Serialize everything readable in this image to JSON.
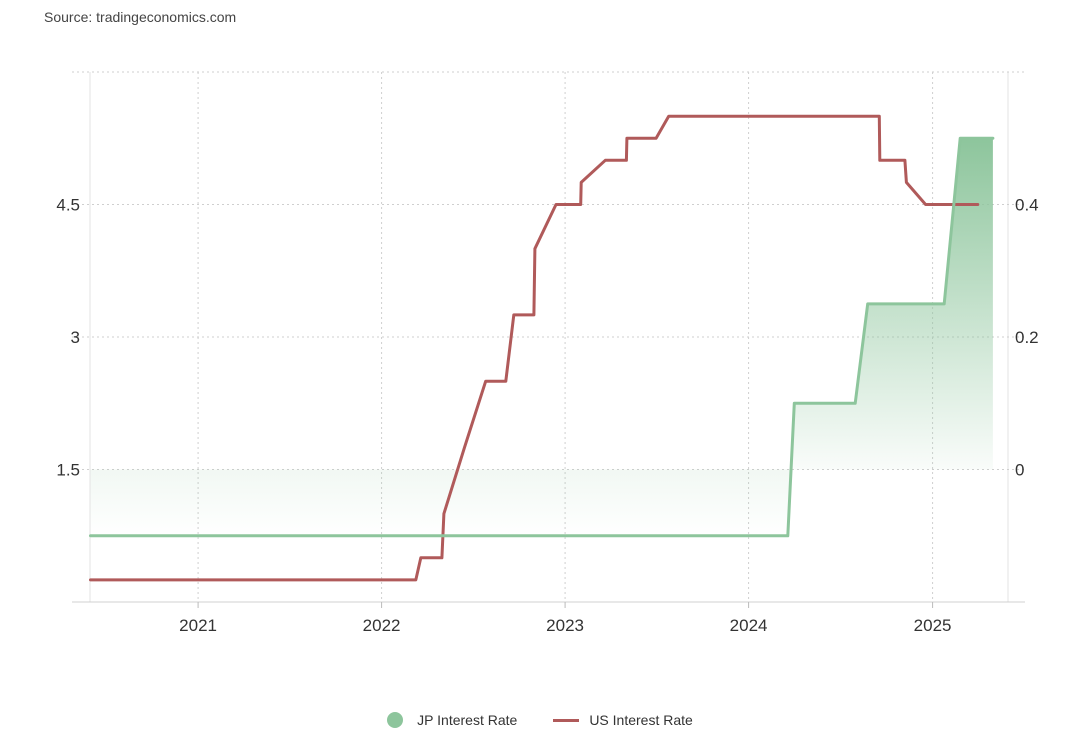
{
  "source": "Source: tradingeconomics.com",
  "legend": {
    "jp": "JP Interest Rate",
    "us": "US Interest Rate"
  },
  "colors": {
    "jp": "#8dc59c",
    "us": "#b05a5a",
    "grid": "#cfcfcf"
  },
  "chart_data": {
    "type": "line",
    "x_ticks": [
      "2021",
      "2022",
      "2023",
      "2024",
      "2025"
    ],
    "y_left": {
      "ticks": [
        1.5,
        3,
        4.5
      ],
      "labels": [
        "1.5",
        "3",
        "4.5"
      ],
      "range": [
        0,
        6
      ]
    },
    "y_right": {
      "ticks": [
        0,
        0.2,
        0.4
      ],
      "labels": [
        "0",
        "0.2",
        "0.4"
      ],
      "range": [
        -0.2,
        0.6
      ]
    },
    "x_range": [
      "2020-05-31",
      "2025-05-31"
    ],
    "series": [
      {
        "name": "US Interest Rate",
        "axis": "left",
        "points": [
          [
            "2020-06-01",
            0.25
          ],
          [
            "2022-03-10",
            0.25
          ],
          [
            "2022-03-20",
            0.5
          ],
          [
            "2022-05-01",
            0.5
          ],
          [
            "2022-05-05",
            1.0
          ],
          [
            "2022-06-15",
            1.75
          ],
          [
            "2022-07-27",
            2.5
          ],
          [
            "2022-09-05",
            2.5
          ],
          [
            "2022-09-21",
            3.25
          ],
          [
            "2022-10-31",
            3.25
          ],
          [
            "2022-11-02",
            4.0
          ],
          [
            "2022-12-14",
            4.5
          ],
          [
            "2023-02-01",
            4.5
          ],
          [
            "2023-02-02",
            4.75
          ],
          [
            "2023-03-22",
            5.0
          ],
          [
            "2023-05-03",
            5.0
          ],
          [
            "2023-05-04",
            5.25
          ],
          [
            "2023-07-01",
            5.25
          ],
          [
            "2023-07-26",
            5.5
          ],
          [
            "2024-09-17",
            5.5
          ],
          [
            "2024-09-18",
            5.0
          ],
          [
            "2024-11-07",
            5.0
          ],
          [
            "2024-11-10",
            4.75
          ],
          [
            "2024-12-18",
            4.5
          ],
          [
            "2025-04-01",
            4.5
          ]
        ]
      },
      {
        "name": "JP Interest Rate",
        "axis": "right",
        "points": [
          [
            "2020-06-01",
            -0.1
          ],
          [
            "2024-03-19",
            -0.1
          ],
          [
            "2024-04-01",
            0.1
          ],
          [
            "2024-07-31",
            0.1
          ],
          [
            "2024-08-25",
            0.25
          ],
          [
            "2025-01-24",
            0.25
          ],
          [
            "2025-02-25",
            0.5
          ],
          [
            "2025-05-01",
            0.5
          ]
        ]
      }
    ]
  }
}
